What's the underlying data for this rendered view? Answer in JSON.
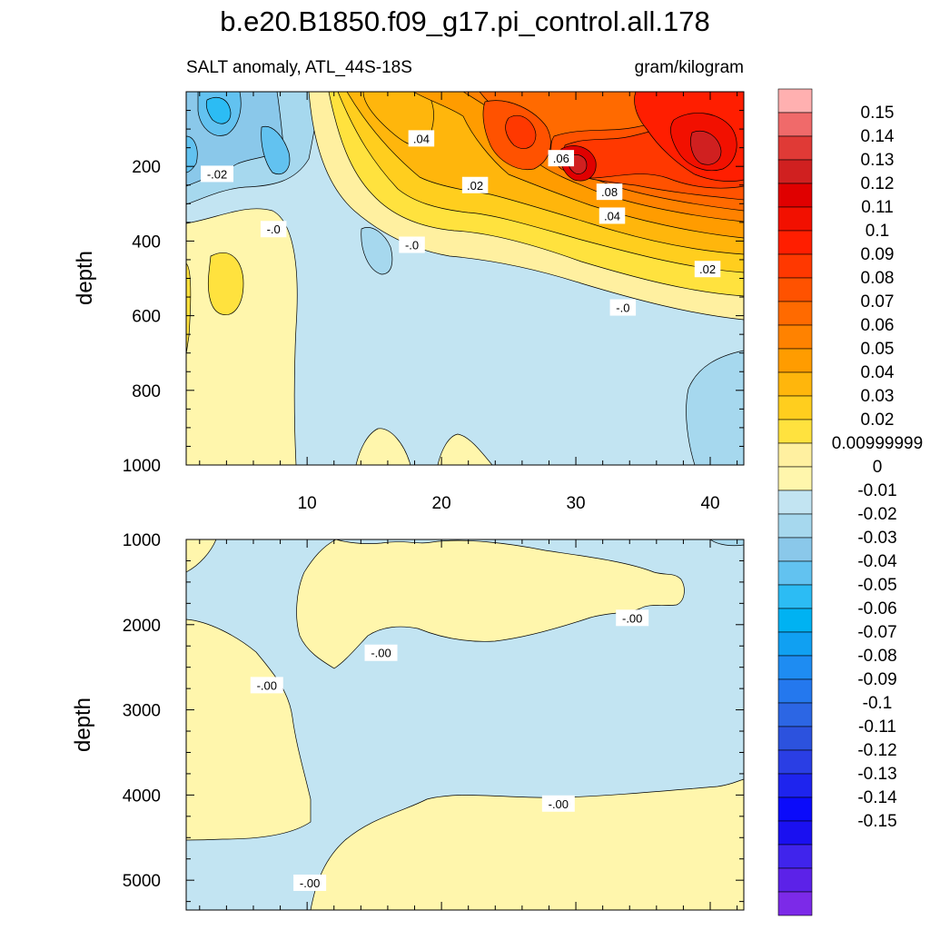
{
  "chart_data": {
    "type": "contour",
    "title": "b.e20.B1850.f09_g17.pi_control.all.178",
    "left_subtitle": "SALT anomaly, ATL_44S-18S",
    "right_subtitle": "gram/kilogram",
    "ylabel": "depth",
    "x_ticks": [
      "10",
      "20",
      "30",
      "40"
    ],
    "x_tick_values": [
      10,
      20,
      30,
      40
    ],
    "xlim": [
      1,
      42.5
    ],
    "panels": [
      {
        "name": "upper",
        "ylim": [
          0,
          1000
        ],
        "y_ticks": [
          "200",
          "400",
          "600",
          "800",
          "1000"
        ],
        "y_tick_values": [
          200,
          400,
          600,
          800,
          1000
        ],
        "contour_labels": [
          {
            "text": "-.02",
            "x": 3.3,
            "y": 220
          },
          {
            "text": ".04",
            "x": 18.5,
            "y": 125
          },
          {
            "text": ".06",
            "x": 28.9,
            "y": 178
          },
          {
            "text": ".02",
            "x": 22.5,
            "y": 250
          },
          {
            "text": ".08",
            "x": 32.5,
            "y": 268
          },
          {
            "text": "-.0",
            "x": 7.5,
            "y": 368
          },
          {
            "text": "-.0",
            "x": 17.8,
            "y": 410
          },
          {
            "text": ".04",
            "x": 32.7,
            "y": 332
          },
          {
            "text": ".02",
            "x": 39.8,
            "y": 475
          },
          {
            "text": "-.0",
            "x": 33.5,
            "y": 578
          }
        ]
      },
      {
        "name": "lower",
        "ylim": [
          1000,
          5350
        ],
        "y_ticks": [
          "1000",
          "2000",
          "3000",
          "4000",
          "5000"
        ],
        "y_tick_values": [
          1000,
          2000,
          3000,
          4000,
          5000
        ],
        "contour_labels": [
          {
            "text": "-.00",
            "x": 15.5,
            "y": 2330
          },
          {
            "text": "-.00",
            "x": 7.0,
            "y": 2710
          },
          {
            "text": "-.00",
            "x": 34.2,
            "y": 1920
          },
          {
            "text": "-.00",
            "x": 28.7,
            "y": 4100
          },
          {
            "text": "-.00",
            "x": 10.2,
            "y": 5030
          }
        ]
      }
    ],
    "colorbar": {
      "labels": [
        "0.15",
        "0.14",
        "0.13",
        "0.12",
        "0.11",
        "0.1",
        "0.09",
        "0.08",
        "0.07",
        "0.06",
        "0.05",
        "0.04",
        "0.03",
        "0.02",
        "0.00999999",
        "0",
        "-0.01",
        "-0.02",
        "-0.03",
        "-0.04",
        "-0.05",
        "-0.06",
        "-0.07",
        "-0.08",
        "-0.09",
        "-0.1",
        "-0.11",
        "-0.12",
        "-0.13",
        "-0.14",
        "-0.15"
      ],
      "colors": [
        "#ffb0b0",
        "#f06a6a",
        "#e03a36",
        "#d02020",
        "#e00000",
        "#f21000",
        "#ff1e00",
        "#ff3800",
        "#ff5200",
        "#ff6a00",
        "#ff8200",
        "#ff9c00",
        "#ffb60c",
        "#ffce1e",
        "#ffe23e",
        "#fff0a0",
        "#fff6ac",
        "#c2e4f2",
        "#a6d8ee",
        "#8ac8ea",
        "#62c2f0",
        "#2cbcf4",
        "#00b2f2",
        "#10a0f2",
        "#1e8cf2",
        "#2478ee",
        "#2c66e4",
        "#2c52de",
        "#2a3ee4",
        "#1e24ee",
        "#0b0bfa",
        "#1a10f0",
        "#4024ec",
        "#5c22e8",
        "#7c2ae8"
      ]
    }
  }
}
